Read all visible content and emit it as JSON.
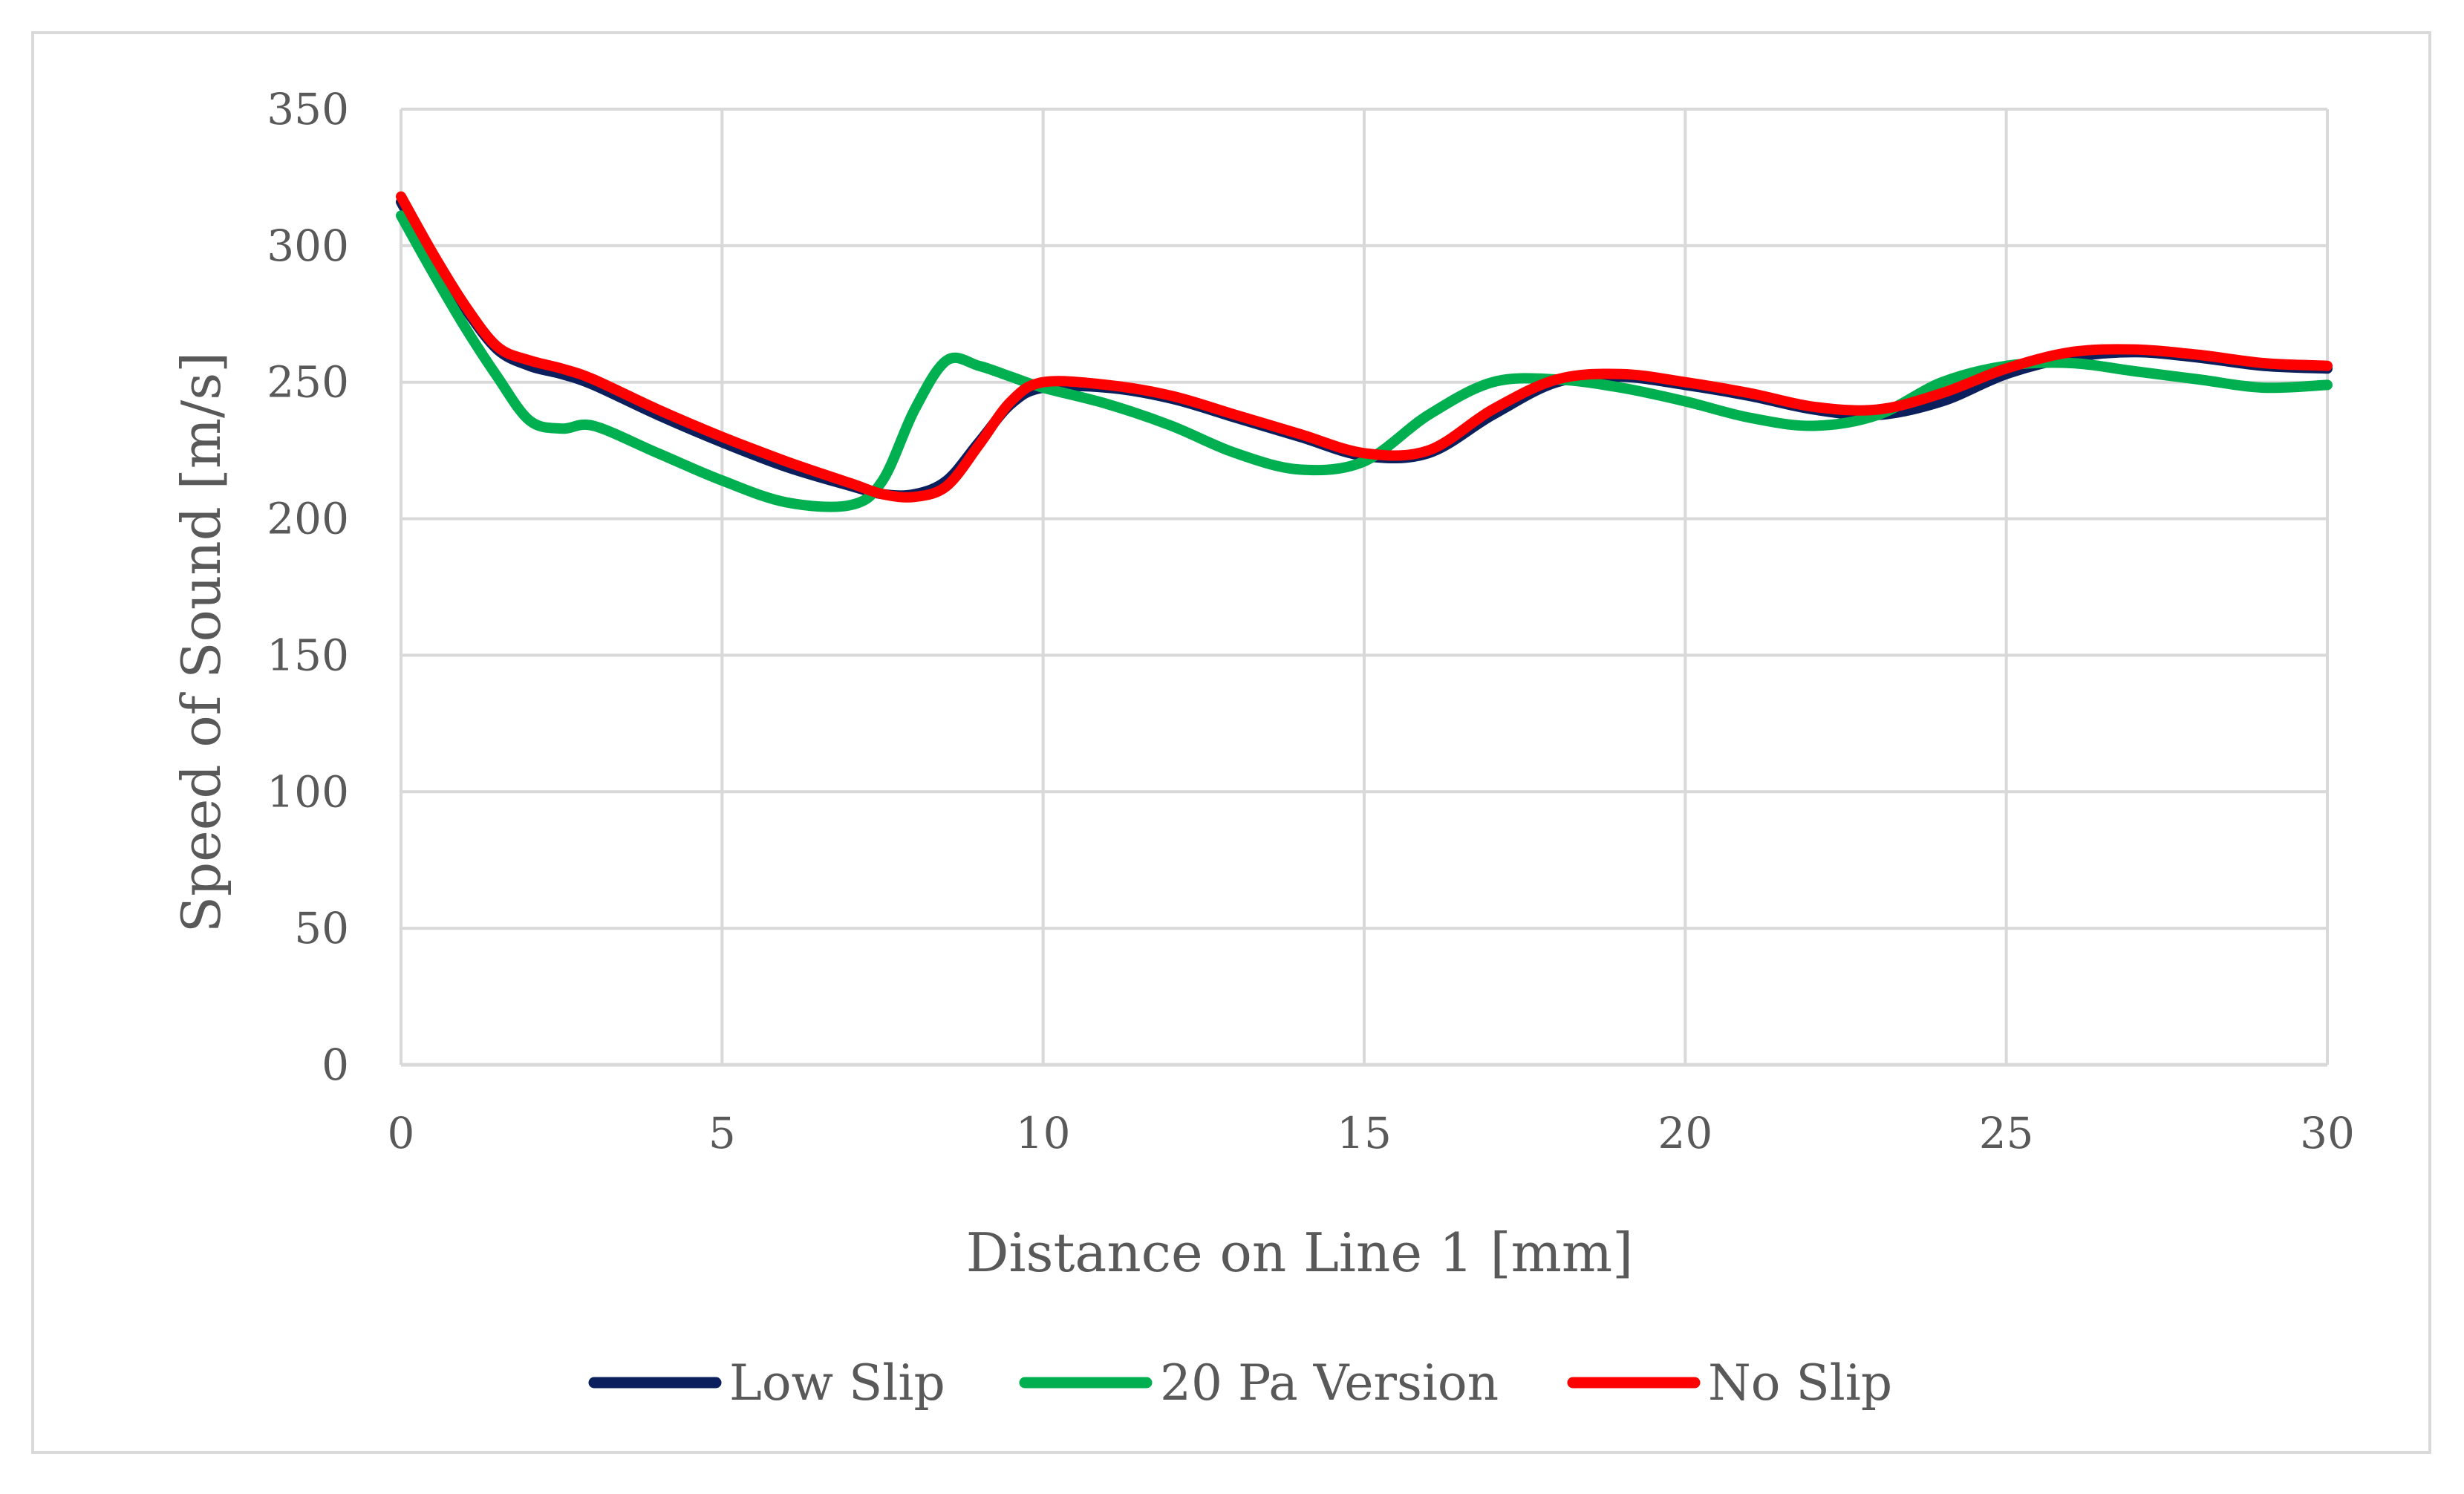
{
  "chart_data": {
    "type": "line",
    "title": "",
    "xlabel": "Distance on Line 1 [mm]",
    "ylabel": "Speed of Sound [m/s]",
    "xlim": [
      0,
      30
    ],
    "ylim": [
      0,
      350
    ],
    "xticks": [
      0,
      5,
      10,
      15,
      20,
      25,
      30
    ],
    "yticks": [
      0,
      50,
      100,
      150,
      200,
      250,
      300,
      350
    ],
    "grid": true,
    "legend_position": "bottom-center",
    "series": [
      {
        "name": "Low Slip",
        "color": "#0b1f5c",
        "x": [
          0,
          0.5,
          1,
          1.5,
          2,
          2.5,
          3,
          4,
          5,
          6,
          7,
          7.5,
          8,
          8.5,
          9,
          9.5,
          10,
          11,
          12,
          13,
          14,
          15,
          16,
          17,
          18,
          19,
          20,
          21,
          22,
          23,
          24,
          25,
          26,
          27,
          28,
          29,
          30
        ],
        "values": [
          316,
          295,
          277,
          262,
          256,
          253,
          249,
          238,
          228,
          219,
          212,
          209,
          209,
          214,
          228,
          242,
          248,
          248,
          244,
          237,
          230,
          223,
          224,
          238,
          250,
          252,
          249,
          245,
          240,
          238,
          243,
          253,
          259,
          261,
          259,
          256,
          255
        ]
      },
      {
        "name": "20 Pa Version",
        "color": "#00b050",
        "x": [
          0,
          0.5,
          1,
          1.5,
          2,
          2.5,
          3,
          4,
          5,
          6,
          7,
          7.5,
          8,
          8.5,
          9,
          9.5,
          10,
          11,
          12,
          13,
          14,
          15,
          16,
          17,
          18,
          19,
          20,
          21,
          22,
          23,
          24,
          25,
          26,
          27,
          28,
          29,
          30
        ],
        "values": [
          311,
          290,
          270,
          252,
          236,
          233,
          234,
          224,
          214,
          206,
          205,
          214,
          240,
          258,
          256,
          252,
          248,
          242,
          234,
          224,
          218,
          221,
          238,
          250,
          251,
          248,
          243,
          237,
          234,
          238,
          250,
          256,
          257,
          254,
          251,
          248,
          249
        ]
      },
      {
        "name": "No Slip",
        "color": "#ff0000",
        "x": [
          0,
          0.5,
          1,
          1.5,
          2,
          2.5,
          3,
          4,
          5,
          6,
          7,
          7.5,
          8,
          8.5,
          9,
          9.5,
          10,
          11,
          12,
          13,
          14,
          15,
          16,
          17,
          18,
          19,
          20,
          21,
          22,
          23,
          24,
          25,
          26,
          27,
          28,
          29,
          30
        ],
        "values": [
          318,
          297,
          278,
          263,
          258,
          255,
          251,
          240,
          230,
          221,
          213,
          209,
          208,
          212,
          227,
          243,
          250,
          249,
          245,
          238,
          231,
          224,
          225,
          240,
          251,
          253,
          250,
          246,
          241,
          240,
          246,
          255,
          261,
          262,
          260,
          257,
          256
        ]
      }
    ]
  }
}
